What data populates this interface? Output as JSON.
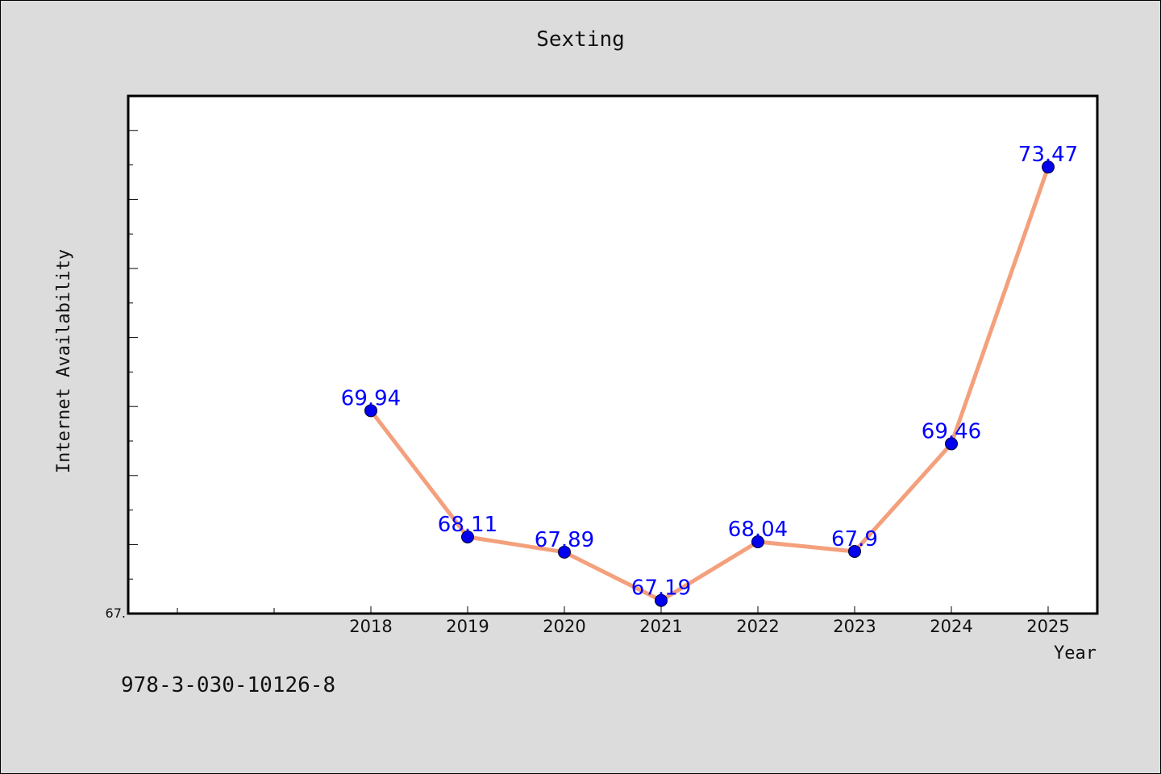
{
  "footer_code": "978-3-030-10126-8",
  "chart_data": {
    "type": "line",
    "title": "Sexting",
    "xlabel": "Year",
    "ylabel": "Internet Availability",
    "categories": [
      "2018",
      "2019",
      "2020",
      "2021",
      "2022",
      "2023",
      "2024",
      "2025"
    ],
    "series": [
      {
        "values": [
          69.94,
          68.11,
          67.89,
          67.19,
          68.04,
          67.9,
          69.46,
          73.47
        ],
        "data_labels": [
          "69.94",
          "68.11",
          "67.89",
          "67.19",
          "68.04",
          "67.9",
          "69.46",
          "73.47"
        ]
      }
    ],
    "ylim": [
      67.0,
      74.5
    ],
    "y_tick_labels": [
      "67."
    ],
    "grid": false,
    "legend": "none",
    "colors": {
      "line": "#f4a07c",
      "marker": "#0000ee",
      "marker_edge": "#000033",
      "data_label": "#0000ff",
      "plot_background": "#ffffff",
      "page_background": "#dcdcdc"
    }
  }
}
